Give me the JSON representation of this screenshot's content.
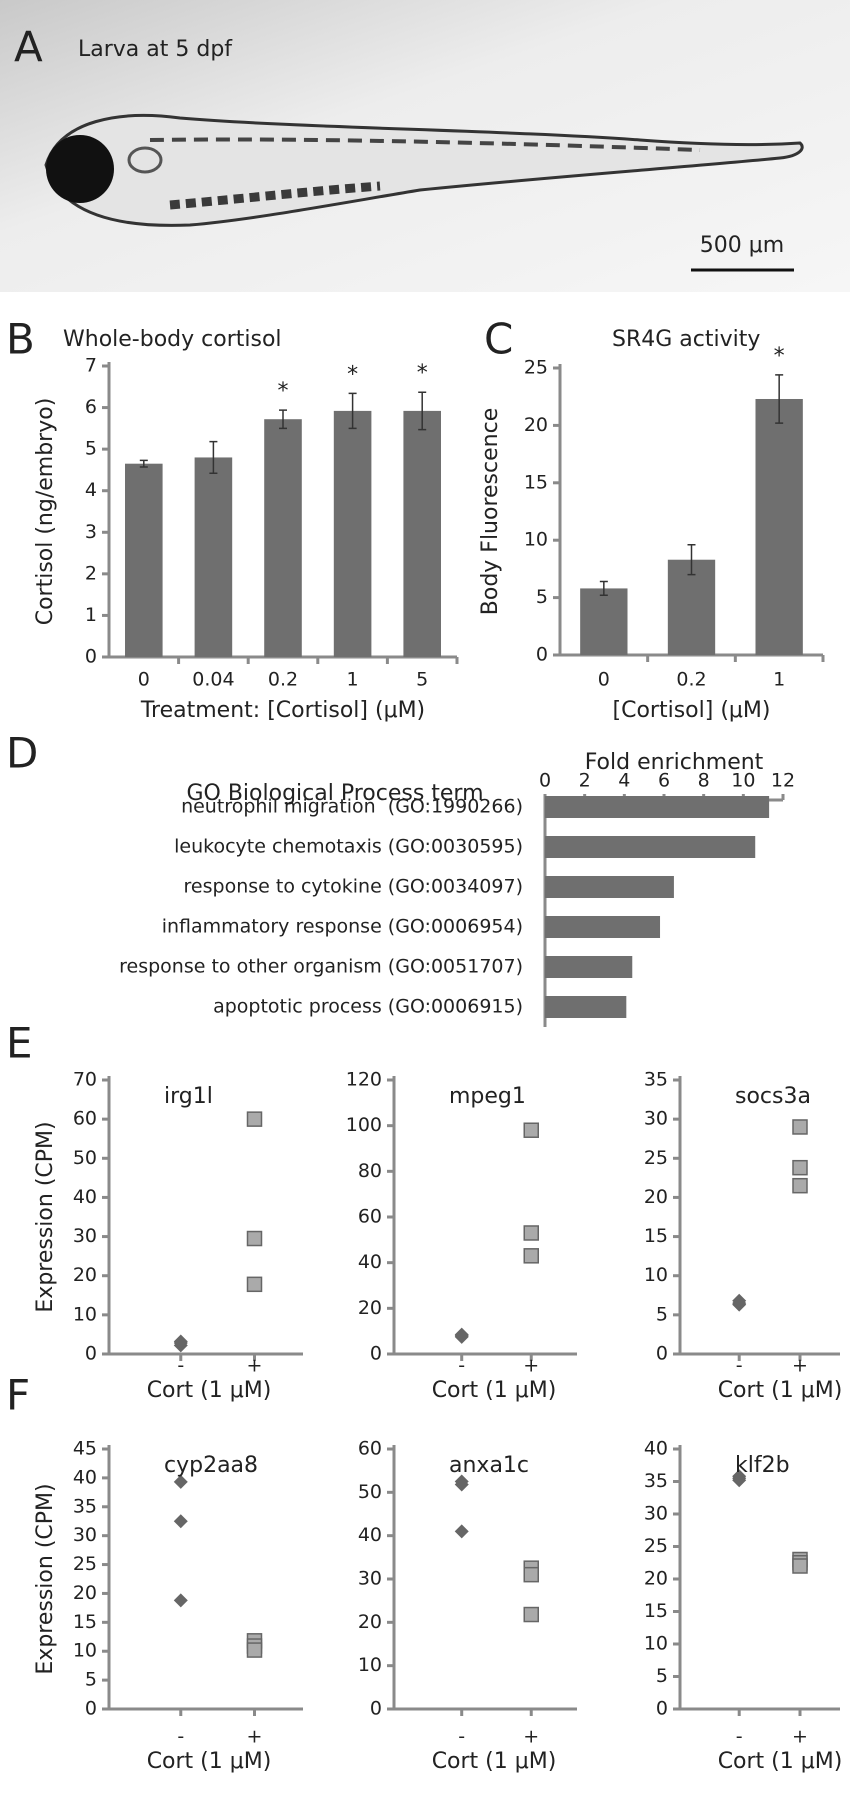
{
  "panel_a": {
    "letter": "A",
    "label": "Larva at 5 dpf",
    "scale_bar": "500 μm"
  },
  "chart_data": [
    {
      "type": "bar",
      "panel": "B",
      "title": "Whole-body cortisol",
      "y_label": "Cortisol (ng/embryo)",
      "x_label": "Treatment: [Cortisol] (μM)",
      "categories": [
        "0",
        "0.04",
        "0.2",
        "1",
        "5"
      ],
      "values": [
        4.65,
        4.8,
        5.72,
        5.92,
        5.92
      ],
      "errors": [
        0.08,
        0.38,
        0.22,
        0.42,
        0.45
      ],
      "markers": [
        null,
        null,
        "*",
        "*",
        "*"
      ],
      "color": "#6f6f6f",
      "ylim": [
        0,
        7
      ],
      "yticks": [
        0,
        1,
        2,
        3,
        4,
        5,
        6,
        7
      ]
    },
    {
      "type": "bar",
      "panel": "C",
      "title": "SR4G activity",
      "y_label": "Body Fluorescence",
      "x_label": "[Cortisol] (μM)",
      "categories": [
        "0",
        "0.2",
        "1"
      ],
      "values": [
        5.8,
        8.3,
        22.3
      ],
      "errors": [
        0.6,
        1.3,
        2.1
      ],
      "markers": [
        null,
        null,
        "*"
      ],
      "color": "#6f6f6f",
      "ylim": [
        0,
        25
      ],
      "yticks": [
        0,
        5,
        10,
        15,
        20,
        25
      ]
    },
    {
      "type": "hbar",
      "panel": "D",
      "title": "GO Biological Process term",
      "x_label": "Fold enrichment",
      "categories": [
        "neutrophil migration  (GO:1990266)",
        "leukocyte chemotaxis (GO:0030595)",
        "response to cytokine (GO:0034097)",
        "inflammatory response (GO:0006954)",
        "response to other organism (GO:0051707)",
        "apoptotic process (GO:0006915)"
      ],
      "values": [
        11.3,
        10.6,
        6.5,
        5.8,
        4.4,
        4.1
      ],
      "color": "#6f6f6f",
      "xlim": [
        0,
        12
      ],
      "xticks": [
        0,
        2,
        4,
        6,
        8,
        10,
        12
      ]
    },
    {
      "type": "scatter",
      "panel": "E",
      "title": "irg1l",
      "y_label": "Expression (CPM)",
      "x_label": "Cort (1 μM)",
      "categories": [
        "-",
        "+"
      ],
      "points": [
        [
          2.2,
          2.8,
          3.2
        ],
        [
          60,
          29.5,
          17.8
        ]
      ],
      "markers": [
        "diamond",
        "square"
      ],
      "colors": [
        "#666666",
        "#aaaaaa"
      ],
      "ylim": [
        0,
        70
      ],
      "yticks": [
        0,
        10,
        20,
        30,
        40,
        50,
        60,
        70
      ]
    },
    {
      "type": "scatter",
      "title": "mpeg1",
      "x_label": "Cort (1 μM)",
      "categories": [
        "-",
        "+"
      ],
      "points": [
        [
          7.5,
          8,
          8.5
        ],
        [
          98,
          53,
          43
        ]
      ],
      "markers": [
        "diamond",
        "square"
      ],
      "colors": [
        "#666666",
        "#aaaaaa"
      ],
      "ylim": [
        0,
        120
      ],
      "yticks": [
        0,
        20,
        40,
        60,
        80,
        100,
        120
      ]
    },
    {
      "type": "scatter",
      "title": "socs3a",
      "x_label": "Cort (1 μM)",
      "categories": [
        "-",
        "+"
      ],
      "points": [
        [
          6.3,
          6.5,
          6.8
        ],
        [
          29,
          23.8,
          21.5
        ]
      ],
      "markers": [
        "diamond",
        "square"
      ],
      "colors": [
        "#666666",
        "#aaaaaa"
      ],
      "ylim": [
        0,
        35
      ],
      "yticks": [
        0,
        5,
        10,
        15,
        20,
        25,
        30,
        35
      ]
    },
    {
      "type": "scatter",
      "panel": "F",
      "title": "cyp2aa8",
      "y_label": "Expression (CPM)",
      "x_label": "Cort (1 μM)",
      "categories": [
        "-",
        "+"
      ],
      "points": [
        [
          39.3,
          32.5,
          18.8
        ],
        [
          11.8,
          10.9,
          10.2
        ]
      ],
      "markers": [
        "diamond",
        "square"
      ],
      "colors": [
        "#666666",
        "#aaaaaa"
      ],
      "ylim": [
        0,
        45
      ],
      "yticks": [
        0,
        5,
        10,
        15,
        20,
        25,
        30,
        35,
        40,
        45
      ]
    },
    {
      "type": "scatter",
      "title": "anxa1c",
      "x_label": "Cort (1 μM)",
      "categories": [
        "-",
        "+"
      ],
      "points": [
        [
          52.5,
          51.8,
          41
        ],
        [
          32.5,
          31,
          21.8
        ]
      ],
      "markers": [
        "diamond",
        "square"
      ],
      "colors": [
        "#666666",
        "#aaaaaa"
      ],
      "ylim": [
        0,
        60
      ],
      "yticks": [
        0,
        10,
        20,
        30,
        40,
        50,
        60
      ]
    },
    {
      "type": "scatter",
      "title": "klf2b",
      "x_label": "Cort (1 μM)",
      "categories": [
        "-",
        "+"
      ],
      "points": [
        [
          35.8,
          35.5,
          35.2
        ],
        [
          23,
          22.5,
          22
        ]
      ],
      "markers": [
        "diamond",
        "square"
      ],
      "colors": [
        "#666666",
        "#aaaaaa"
      ],
      "ylim": [
        0,
        40
      ],
      "yticks": [
        0,
        5,
        10,
        15,
        20,
        25,
        30,
        35,
        40
      ]
    }
  ]
}
